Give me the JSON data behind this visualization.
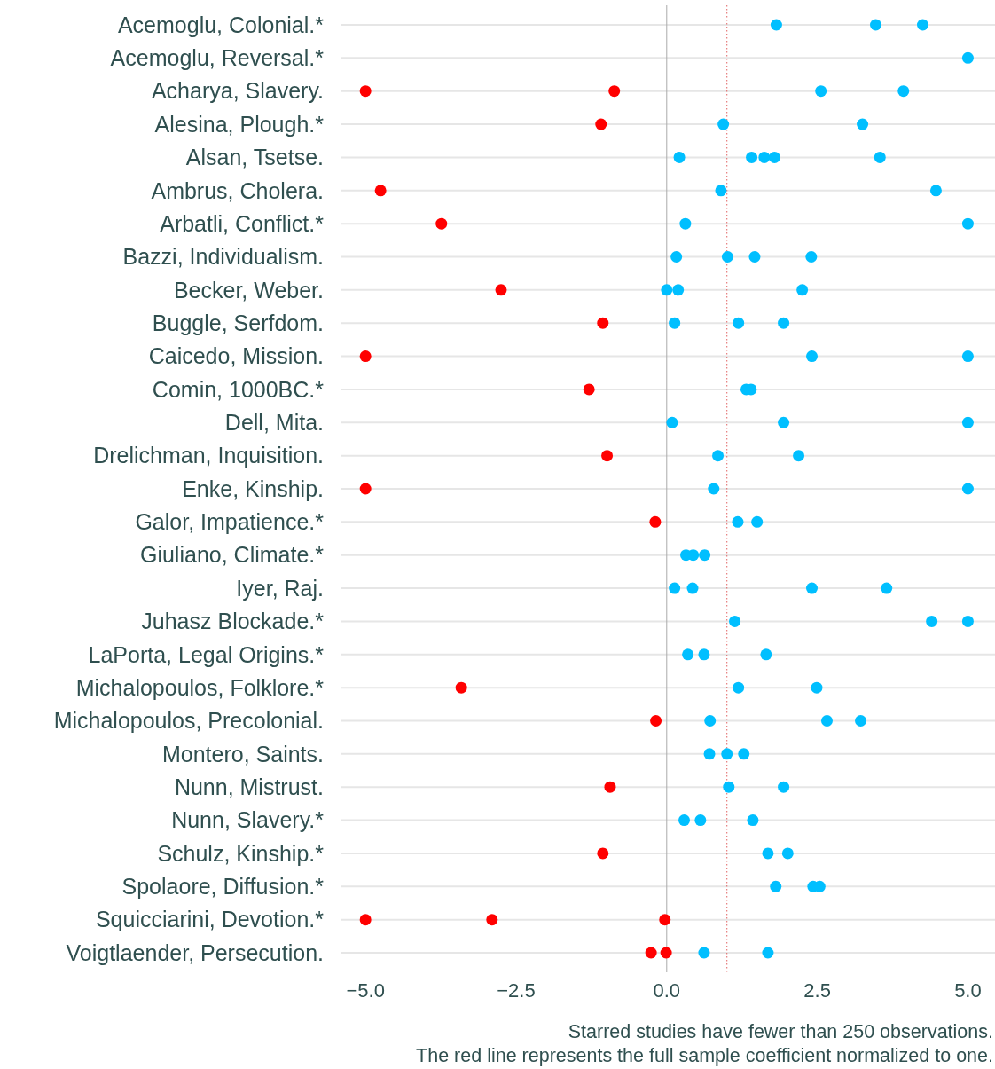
{
  "chart_data": {
    "type": "scatter",
    "orientation": "horizontal",
    "marker": "circle",
    "grid": "y",
    "categories": [
      "Acemoglu, Colonial.*",
      "Acemoglu, Reversal.*",
      "Acharya, Slavery.",
      "Alesina, Plough.*",
      "Alsan, Tsetse.",
      "Ambrus, Cholera.",
      "Arbatli, Conflict.*",
      "Bazzi, Individualism.",
      "Becker, Weber.",
      "Buggle, Serfdom.",
      "Caicedo, Mission.",
      "Comin, 1000BC.*",
      "Dell, Mita.",
      "Drelichman, Inquisition.",
      "Enke, Kinship.",
      "Galor, Impatience.*",
      "Giuliano, Climate.*",
      "Iyer, Raj.",
      "Juhasz Blockade.*",
      "LaPorta, Legal Origins.*",
      "Michalopoulos, Folklore.*",
      "Michalopoulos, Precolonial.",
      "Montero, Saints.",
      "Nunn, Mistrust.",
      "Nunn, Slavery.*",
      "Schulz, Kinship.*",
      "Spolaore, Diffusion.*",
      "Squicciarini, Devotion.*",
      "Voigtlaender, Persecution."
    ],
    "xlim": [
      -5.4,
      5.45
    ],
    "xticks": [
      {
        "value": -5,
        "label": "−5.0"
      },
      {
        "value": -2.5,
        "label": "−2.5"
      },
      {
        "value": 0,
        "label": "0.0"
      },
      {
        "value": 2.5,
        "label": "2.5"
      },
      {
        "value": 5,
        "label": "5.0"
      }
    ],
    "ref_lines": [
      {
        "axis": "x",
        "value": 0,
        "color": "#aaaaaa",
        "line_style": "solid"
      },
      {
        "axis": "x",
        "value": 1,
        "color": "#e06060",
        "line_style": "dotted"
      }
    ],
    "series": [
      {
        "color": "#ff0000",
        "values": [
          null,
          null,
          -5.0,
          -1.09,
          null,
          -4.75,
          -3.74,
          null,
          -2.75,
          -1.06,
          -5.0,
          -1.29,
          null,
          -0.99,
          -5.0,
          -0.19,
          null,
          null,
          null,
          null,
          -3.41,
          -0.18,
          null,
          -0.94,
          null,
          -1.06,
          null,
          -5.0,
          -0.26
        ]
      },
      {
        "color": "#ff0000",
        "values": [
          null,
          null,
          -0.87,
          null,
          null,
          null,
          null,
          null,
          null,
          null,
          null,
          null,
          null,
          null,
          null,
          null,
          null,
          null,
          null,
          null,
          null,
          null,
          null,
          null,
          null,
          null,
          null,
          -2.9,
          -0.01
        ]
      },
      {
        "color": "#ff0000",
        "values": [
          null,
          null,
          null,
          null,
          null,
          null,
          null,
          null,
          null,
          null,
          null,
          null,
          null,
          null,
          null,
          null,
          null,
          null,
          null,
          null,
          null,
          null,
          null,
          null,
          null,
          null,
          null,
          -0.03,
          null
        ]
      },
      {
        "color": "#00bfff",
        "values": [
          1.82,
          5.0,
          2.56,
          0.94,
          0.21,
          0.9,
          0.31,
          0.16,
          0.0,
          0.13,
          2.41,
          1.32,
          0.09,
          0.85,
          0.78,
          1.18,
          0.32,
          0.13,
          1.13,
          0.35,
          1.19,
          0.72,
          0.71,
          1.03,
          0.29,
          1.68,
          1.81,
          null,
          0.62
        ]
      },
      {
        "color": "#00bfff",
        "values": [
          3.47,
          null,
          3.93,
          3.25,
          1.41,
          4.47,
          5.0,
          1.01,
          0.19,
          1.19,
          5.0,
          1.4,
          1.94,
          2.19,
          5.0,
          1.5,
          0.44,
          0.43,
          4.4,
          0.62,
          2.49,
          2.66,
          1.0,
          1.94,
          0.56,
          2.01,
          2.43,
          null,
          1.68
        ]
      },
      {
        "color": "#00bfff",
        "values": [
          4.25,
          null,
          null,
          null,
          1.62,
          null,
          null,
          1.46,
          2.25,
          1.94,
          null,
          null,
          5.0,
          null,
          null,
          null,
          0.63,
          2.41,
          5.0,
          1.65,
          null,
          3.22,
          1.28,
          null,
          1.43,
          null,
          2.54,
          null,
          null
        ]
      },
      {
        "color": "#00bfff",
        "values": [
          null,
          null,
          null,
          null,
          1.79,
          null,
          null,
          2.4,
          null,
          null,
          null,
          null,
          null,
          null,
          null,
          null,
          null,
          3.65,
          null,
          null,
          null,
          null,
          null,
          null,
          null,
          null,
          null,
          null,
          null
        ]
      },
      {
        "color": "#00bfff",
        "values": [
          null,
          null,
          null,
          null,
          3.54,
          null,
          null,
          null,
          null,
          null,
          null,
          null,
          null,
          null,
          null,
          null,
          null,
          null,
          null,
          null,
          null,
          null,
          null,
          null,
          null,
          null,
          null,
          null,
          null
        ]
      }
    ],
    "annotations": [
      "Starred studies have fewer than 250 observations.",
      "The red line represents the full sample coefficient normalized to one."
    ]
  }
}
